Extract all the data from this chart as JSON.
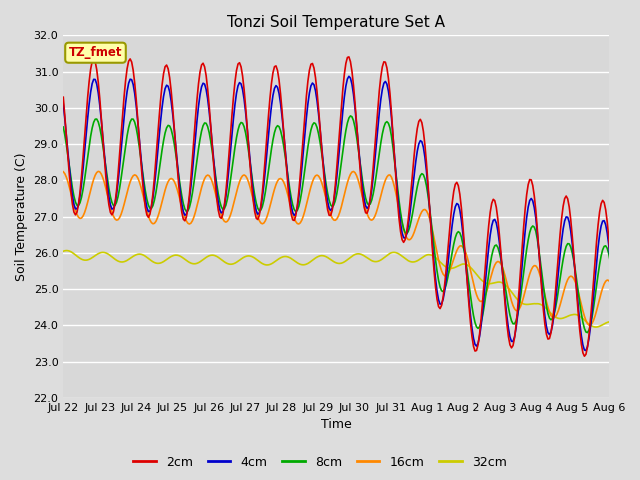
{
  "title": "Tonzi Soil Temperature Set A",
  "xlabel": "Time",
  "ylabel": "Soil Temperature (C)",
  "ylim": [
    22.0,
    32.0
  ],
  "yticks": [
    22.0,
    23.0,
    24.0,
    25.0,
    26.0,
    27.0,
    28.0,
    29.0,
    30.0,
    31.0,
    32.0
  ],
  "ytick_labels": [
    "22.0",
    "23.0",
    "24.0",
    "25.0",
    "26.0",
    "27.0",
    "28.0",
    "29.0",
    "30.0",
    "31.0",
    "32.0"
  ],
  "colors": {
    "2cm": "#dd0000",
    "4cm": "#0000cc",
    "8cm": "#00aa00",
    "16cm": "#ff8800",
    "32cm": "#cccc00"
  },
  "legend_labels": [
    "2cm",
    "4cm",
    "8cm",
    "16cm",
    "32cm"
  ],
  "annotation_text": "TZ_fmet",
  "annotation_bg": "#ffffaa",
  "annotation_border": "#999900",
  "fig_bg": "#dddddd",
  "plot_bg": "#d8d8d8",
  "grid_color": "#ffffff",
  "x_tick_labels": [
    "Jul 22",
    "Jul 23",
    "Jul 24",
    "Jul 25",
    "Jul 26",
    "Jul 27",
    "Jul 28",
    "Jul 29",
    "Jul 30",
    "Jul 31",
    "Aug 1",
    "Aug 2",
    "Aug 3",
    "Aug 4",
    "Aug 5",
    "Aug 6"
  ],
  "line_width": 1.2
}
